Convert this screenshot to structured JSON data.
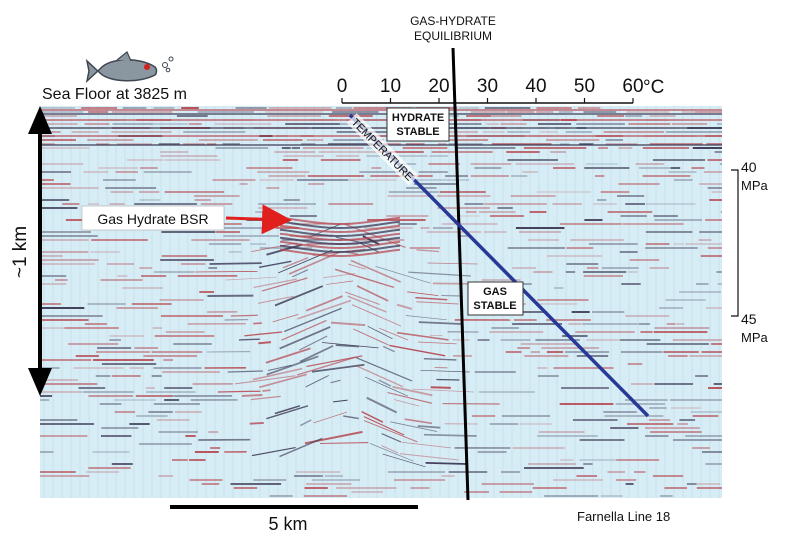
{
  "labels": {
    "equilibrium_line1": "GAS-HYDRATE",
    "equilibrium_line2": "EQUILIBRIUM",
    "sea_floor": "Sea Floor at 3825 m",
    "temperature": "TEMPERATURE",
    "hydrate_stable_line1": "HYDRATE",
    "hydrate_stable_line2": "STABLE",
    "gas_stable_line1": "GAS",
    "gas_stable_line2": "STABLE",
    "bsr": "Gas Hydrate BSR",
    "depth": "~1 km",
    "pressure_top_value": "40",
    "pressure_top_unit": "MPa",
    "pressure_bottom_value": "45",
    "pressure_bottom_unit": "MPa",
    "scale": "5 km",
    "line_id": "Farnella Line 18"
  },
  "temperature_ticks": [
    "0",
    "10",
    "20",
    "30",
    "40",
    "50",
    "60"
  ],
  "temperature_unit": "°C",
  "colors": {
    "seismic_background": "#d6edf6",
    "seismic_red": "#b8474f",
    "seismic_dark": "#3a3550",
    "bsr_arrow": "#e0201c",
    "temperature_line": "#283896",
    "hydrate_text": "#2e9c9c",
    "gas_text": "#3ca03c",
    "fish": "#8a96a0"
  }
}
